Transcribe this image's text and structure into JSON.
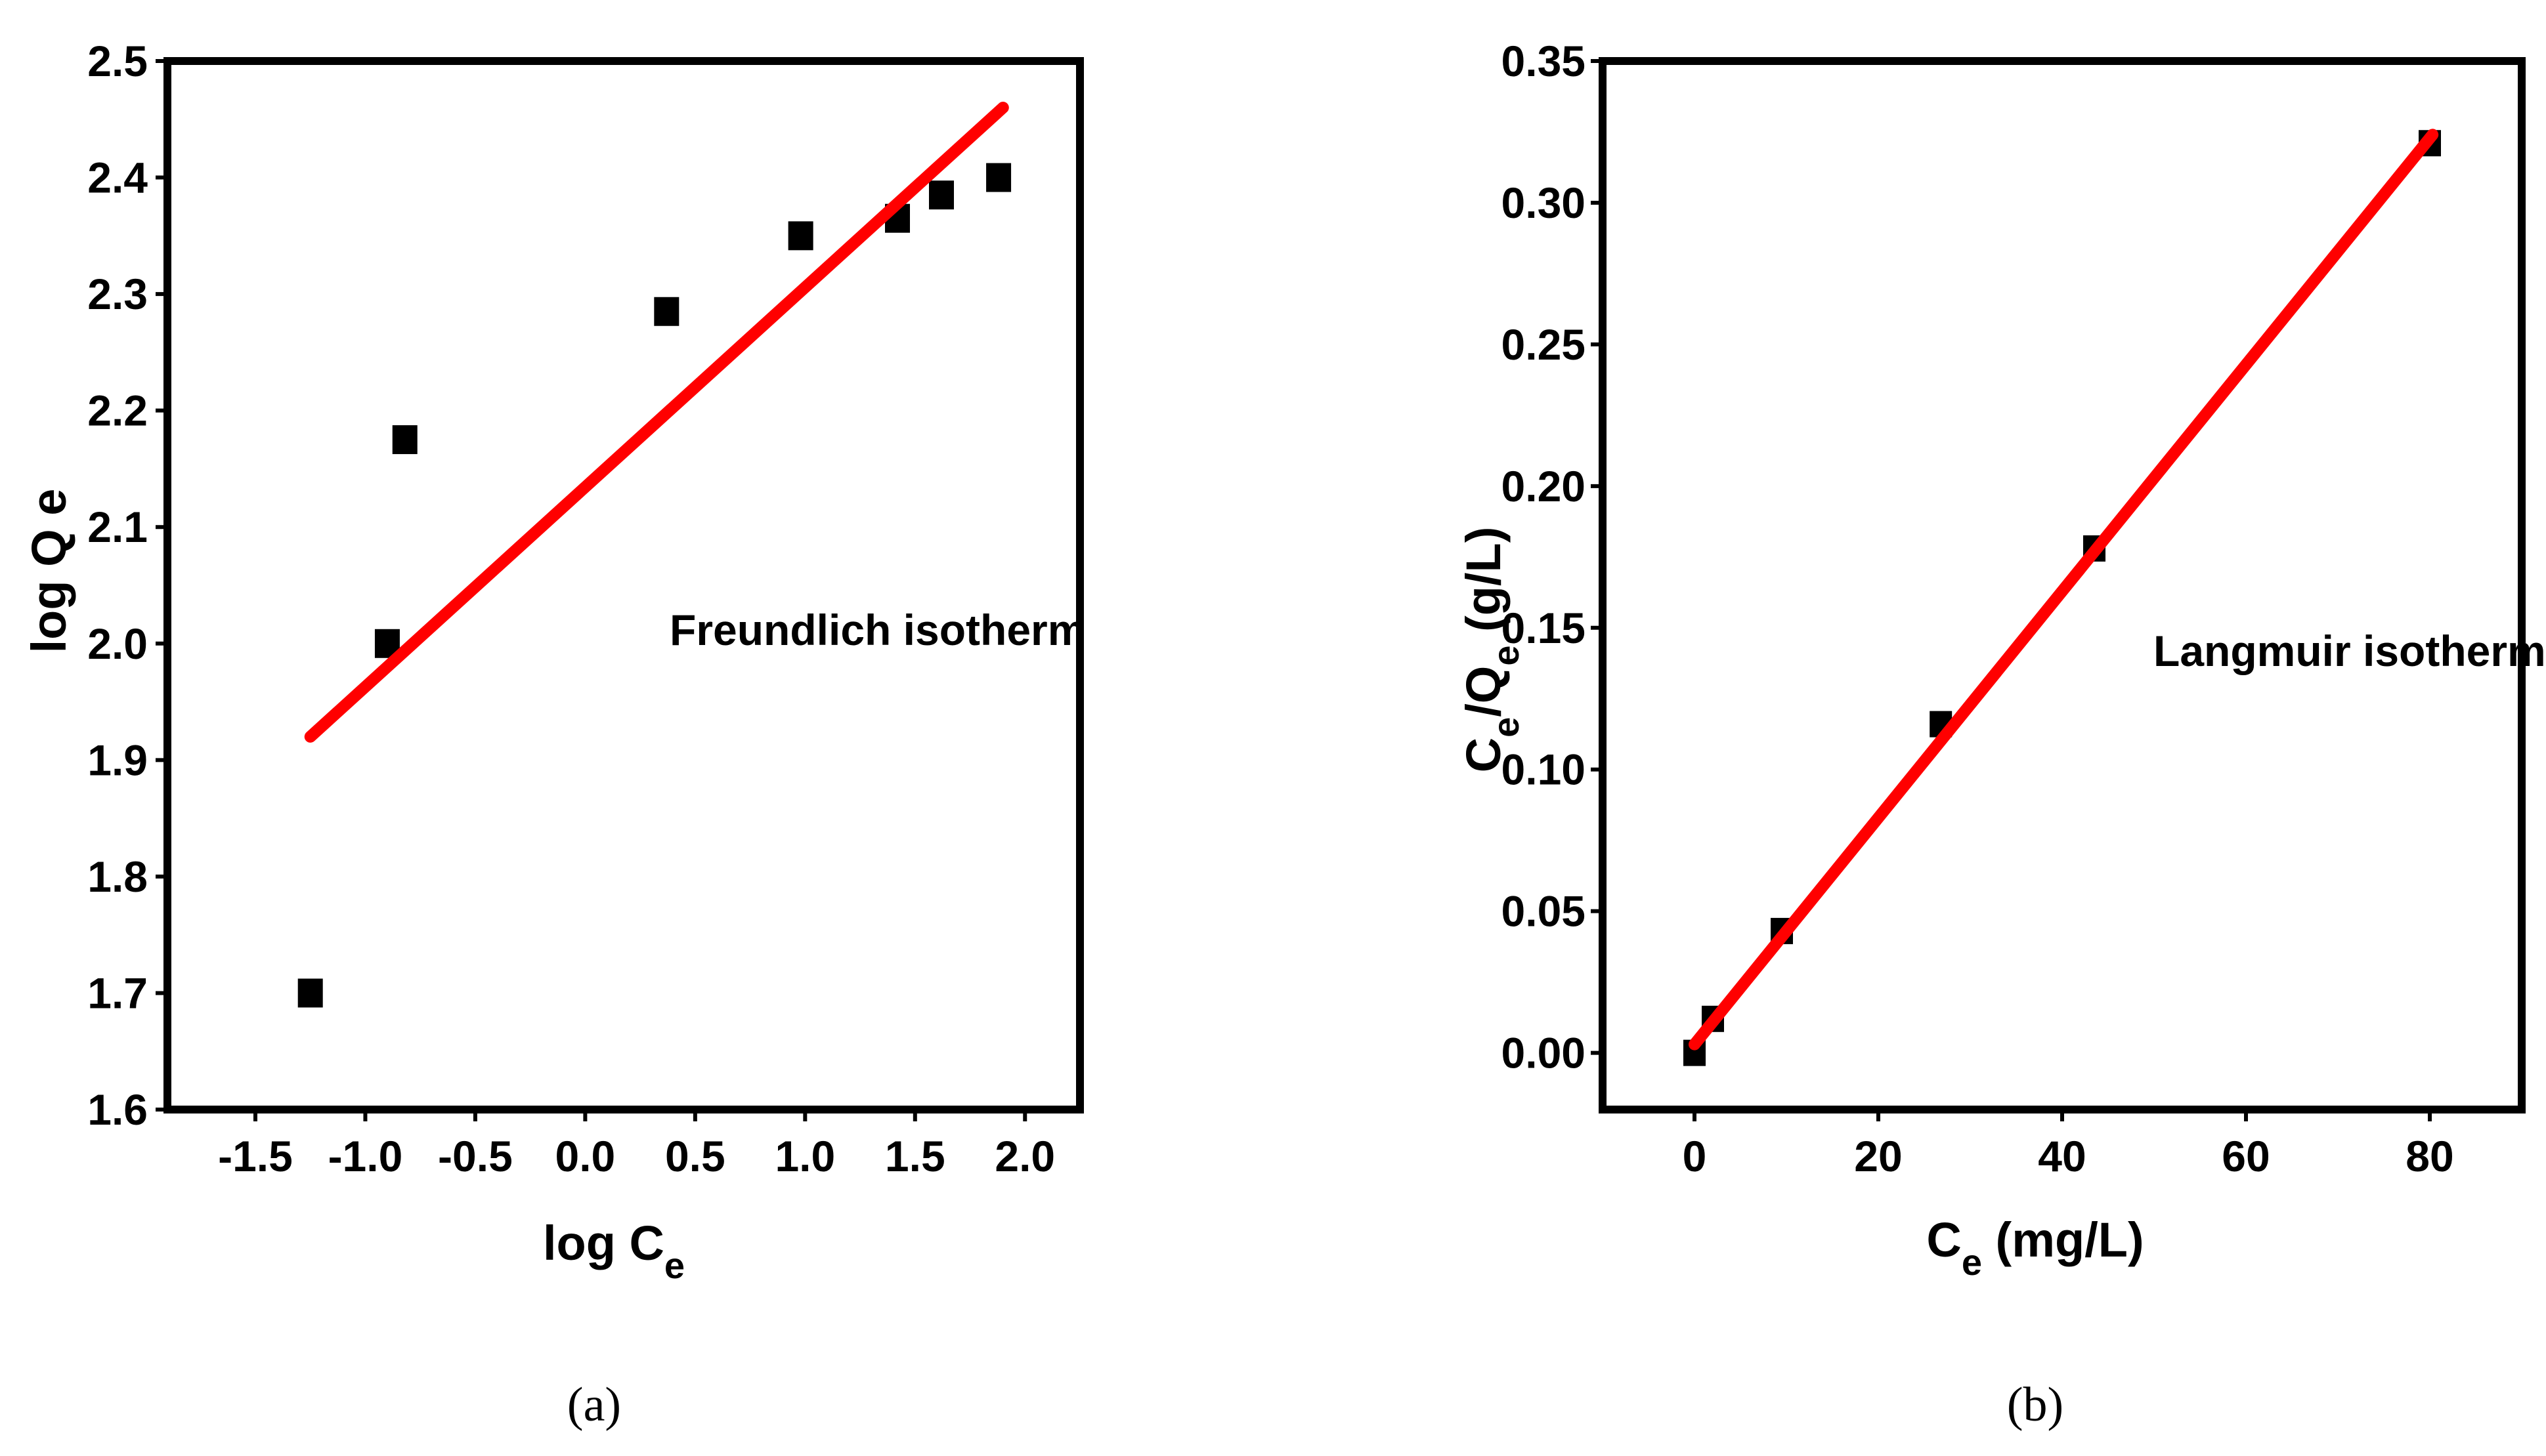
{
  "colors": {
    "axis": "#000000",
    "marker": "#000000",
    "fit_line": "#ff0000",
    "background": "#ffffff"
  },
  "chart_data": [
    {
      "type": "scatter",
      "panel_label": "(a)",
      "annotation": "Freundlich isotherm",
      "xlabel": {
        "main": "log C",
        "subscript": "e"
      },
      "ylabel": "log Q e",
      "xlim": [
        -1.9,
        2.25
      ],
      "ylim": [
        1.6,
        2.5
      ],
      "xticks": [
        -1.5,
        -1.0,
        -0.5,
        0.0,
        0.5,
        1.0,
        1.5,
        2.0
      ],
      "xtick_labels": [
        "-1.5",
        "-1.0",
        "-0.5",
        "0.0",
        "0.5",
        "1.0",
        "1.5",
        "2.0"
      ],
      "yticks": [
        1.6,
        1.7,
        1.8,
        1.9,
        2.0,
        2.1,
        2.2,
        2.3,
        2.4,
        2.5
      ],
      "ytick_labels": [
        "1.6",
        "1.7",
        "1.8",
        "1.9",
        "2.0",
        "2.1",
        "2.2",
        "2.3",
        "2.4",
        "2.5"
      ],
      "grid": false,
      "points": [
        {
          "x": -1.25,
          "y": 1.7
        },
        {
          "x": -0.9,
          "y": 2.0
        },
        {
          "x": -0.82,
          "y": 2.175
        },
        {
          "x": 0.37,
          "y": 2.285
        },
        {
          "x": 0.98,
          "y": 2.35
        },
        {
          "x": 1.42,
          "y": 2.365
        },
        {
          "x": 1.62,
          "y": 2.385
        },
        {
          "x": 1.88,
          "y": 2.4
        }
      ],
      "fit_line": [
        {
          "x": -1.25,
          "y": 1.92
        },
        {
          "x": 1.9,
          "y": 2.46
        }
      ]
    },
    {
      "type": "scatter",
      "panel_label": "(b)",
      "annotation": "Langmuir isotherm",
      "xlabel": {
        "main": "C",
        "subscript": "e",
        "unit": " (mg/L)"
      },
      "ylabel": {
        "main1": "C",
        "sub1": "e",
        "main2": "/Q",
        "sub2": "e",
        "unit": " (g/L)"
      },
      "xlim": [
        -10,
        90
      ],
      "ylim": [
        -0.02,
        0.35
      ],
      "xticks": [
        0,
        20,
        40,
        60,
        80
      ],
      "xtick_labels": [
        "0",
        "20",
        "40",
        "60",
        "80"
      ],
      "yticks": [
        0.0,
        0.05,
        0.1,
        0.15,
        0.2,
        0.25,
        0.3,
        0.35
      ],
      "ytick_labels": [
        "0.00",
        "0.05",
        "0.10",
        "0.15",
        "0.20",
        "0.25",
        "0.30",
        "0.35"
      ],
      "grid": false,
      "points": [
        {
          "x": 0,
          "y": 0.0
        },
        {
          "x": 2,
          "y": 0.012
        },
        {
          "x": 9.5,
          "y": 0.043
        },
        {
          "x": 26.8,
          "y": 0.116
        },
        {
          "x": 43.5,
          "y": 0.178
        },
        {
          "x": 80,
          "y": 0.321
        }
      ],
      "fit_line": [
        {
          "x": 0,
          "y": 0.003
        },
        {
          "x": 80.3,
          "y": 0.324
        }
      ]
    }
  ]
}
